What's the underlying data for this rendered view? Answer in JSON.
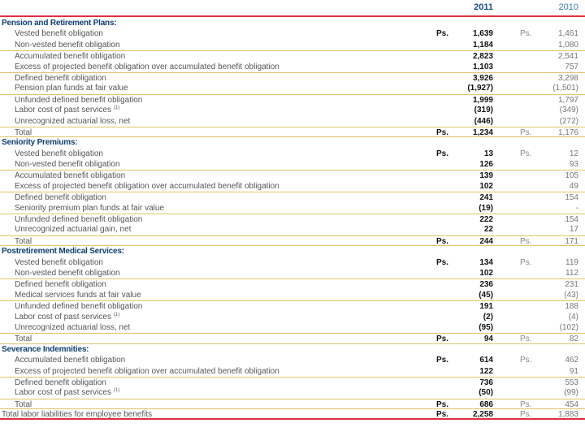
{
  "header": {
    "year_current": "2011",
    "year_prior": "2010"
  },
  "currency": "Ps.",
  "colors": {
    "accent_red": "#e0303c",
    "rule_gold": "#e2c46a",
    "section_navy": "#0e3f73"
  },
  "rows": [
    {
      "type": "sec",
      "label": "Pension and Retirement Plans:"
    },
    {
      "type": "item",
      "label": "Vested benefit obligation",
      "v2011": "1,639",
      "v2010": "1,461",
      "cur": true
    },
    {
      "type": "item",
      "label": "Non-vested benefit obligation",
      "v2011": "1,184",
      "v2010": "1,080"
    },
    {
      "type": "item",
      "label": "Accumulated benefit obligation",
      "v2011": "2,823",
      "v2010": "2,541",
      "lt": true
    },
    {
      "type": "item",
      "label": "Excess of projected benefit obligation over accumulated benefit obligation",
      "v2011": "1,103",
      "v2010": "757"
    },
    {
      "type": "item",
      "label": "Defined benefit obligation",
      "v2011": "3,926",
      "v2010": "3,298",
      "lt": true
    },
    {
      "type": "item",
      "label": "Pension plan funds at fair value",
      "v2011": "(1,927)",
      "v2010": "(1,501)"
    },
    {
      "type": "item",
      "label": "Unfunded defined benefit obligation",
      "v2011": "1,999",
      "v2010": "1,797",
      "lt": true
    },
    {
      "type": "item",
      "label": "Labor cost of past services",
      "note": "(1)",
      "v2011": "(319)",
      "v2010": "(349)"
    },
    {
      "type": "item",
      "label": "Unrecognized actuarial loss, net",
      "v2011": "(446)",
      "v2010": "(272)"
    },
    {
      "type": "total",
      "label": "Total",
      "v2011": "1,234",
      "v2010": "1,176",
      "cur": true,
      "lt": true,
      "lb": true
    },
    {
      "type": "sec",
      "label": "Seniority Premiums:"
    },
    {
      "type": "item",
      "label": "Vested benefit obligation",
      "v2011": "13",
      "v2010": "12",
      "cur": true
    },
    {
      "type": "item",
      "label": "Non-vested benefit obligation",
      "v2011": "126",
      "v2010": "93"
    },
    {
      "type": "item",
      "label": "Accumulated benefit obligation",
      "v2011": "139",
      "v2010": "105",
      "lt": true
    },
    {
      "type": "item",
      "label": "Excess of projected benefit obligation over accumulated benefit obligation",
      "v2011": "102",
      "v2010": "49"
    },
    {
      "type": "item",
      "label": "Defined benefit obligation",
      "v2011": "241",
      "v2010": "154",
      "lt": true
    },
    {
      "type": "item",
      "label": "Seniority premium plan funds at fair value",
      "v2011": "(19)",
      "v2010": "-"
    },
    {
      "type": "item",
      "label": "Unfunded defined benefit obligation",
      "v2011": "222",
      "v2010": "154",
      "lt": true
    },
    {
      "type": "item",
      "label": "Unrecognized actuarial gain, net",
      "v2011": "22",
      "v2010": "17"
    },
    {
      "type": "total",
      "label": "Total",
      "v2011": "244",
      "v2010": "171",
      "cur": true,
      "lt": true,
      "lb": true
    },
    {
      "type": "sec",
      "label": "Postretirement Medical Services:"
    },
    {
      "type": "item",
      "label": "Vested benefit obligation",
      "v2011": "134",
      "v2010": "119",
      "cur": true
    },
    {
      "type": "item",
      "label": "Non-vested benefit obligation",
      "v2011": "102",
      "v2010": "112"
    },
    {
      "type": "item",
      "label": "Defined benefit obligation",
      "v2011": "236",
      "v2010": "231",
      "lt": true
    },
    {
      "type": "item",
      "label": "Medical services funds at fair value",
      "v2011": "(45)",
      "v2010": "(43)"
    },
    {
      "type": "item",
      "label": "Unfunded defined benefit obligation",
      "v2011": "191",
      "v2010": "188",
      "lt": true
    },
    {
      "type": "item",
      "label": "Labor cost of past services",
      "note": "(1)",
      "v2011": "(2)",
      "v2010": "(4)"
    },
    {
      "type": "item",
      "label": "Unrecognized actuarial loss, net",
      "v2011": "(95)",
      "v2010": "(102)"
    },
    {
      "type": "total",
      "label": "Total",
      "v2011": "94",
      "v2010": "82",
      "cur": true,
      "lt": true,
      "lb": true
    },
    {
      "type": "sec",
      "label": "Severance Indemnities:"
    },
    {
      "type": "item",
      "label": "Accumulated benefit obligation",
      "v2011": "614",
      "v2010": "462",
      "cur": true
    },
    {
      "type": "item",
      "label": "Excess of projected benefit obligation over accumulated benefit obligation",
      "v2011": "122",
      "v2010": "91"
    },
    {
      "type": "item",
      "label": "Defined benefit obligation",
      "v2011": "736",
      "v2010": "553",
      "lt": true
    },
    {
      "type": "item",
      "label": "Labor cost of past services",
      "note": "(1)",
      "v2011": "(50)",
      "v2010": "(99)"
    },
    {
      "type": "total",
      "label": "Total",
      "v2011": "686",
      "v2010": "454",
      "cur": true,
      "lt": true,
      "lb": true
    },
    {
      "type": "grand",
      "label": "Total labor liabilities for employee benefits",
      "v2011": "2,258",
      "v2010": "1,883",
      "cur": true
    }
  ]
}
